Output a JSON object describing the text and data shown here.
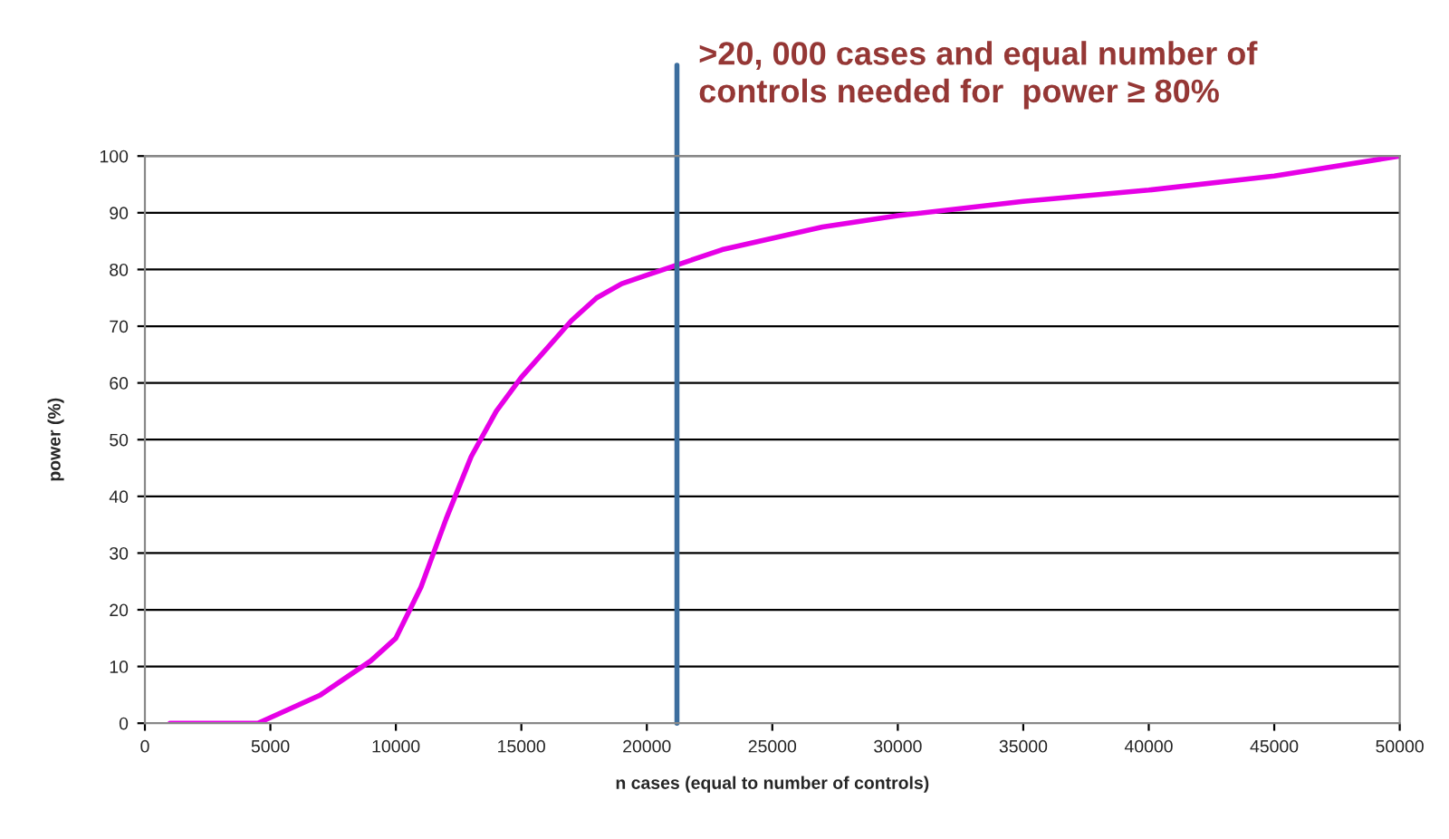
{
  "chart_data": {
    "type": "line",
    "title": ">20, 000 cases and equal number of\ncontrols needed for  power ≥ 80%",
    "xlabel": "n cases (equal to number of controls)",
    "ylabel": "power (%)",
    "x": [
      1000,
      2000,
      3000,
      3500,
      4500,
      5000,
      6000,
      7000,
      8000,
      9000,
      10000,
      11000,
      12000,
      13000,
      14000,
      15000,
      16000,
      17000,
      18000,
      19000,
      20000,
      21000,
      22000,
      23000,
      25000,
      27000,
      30000,
      35000,
      40000,
      45000,
      50000
    ],
    "series": [
      {
        "color": "#e600e6",
        "values": [
          0,
          0,
          0,
          0,
          0,
          1,
          3,
          5,
          8,
          11,
          15,
          24,
          36,
          47,
          55,
          61,
          66,
          71,
          75,
          77.5,
          79,
          80.5,
          82,
          83.5,
          85.5,
          87.5,
          89.5,
          92,
          94,
          96.5,
          100
        ]
      }
    ],
    "xlim": [
      0,
      50000
    ],
    "xticks": [
      0,
      5000,
      10000,
      15000,
      20000,
      25000,
      30000,
      35000,
      40000,
      45000,
      50000
    ],
    "ylim": [
      0,
      100
    ],
    "yticks": [
      0,
      10,
      20,
      30,
      40,
      50,
      60,
      70,
      80,
      90,
      100
    ],
    "grid": "y",
    "legend": false,
    "marker": "none",
    "line_style": "solid",
    "ref_lines": [
      {
        "axis": "x",
        "value": 21200,
        "label": null,
        "color": "#3c6e9e"
      }
    ]
  }
}
